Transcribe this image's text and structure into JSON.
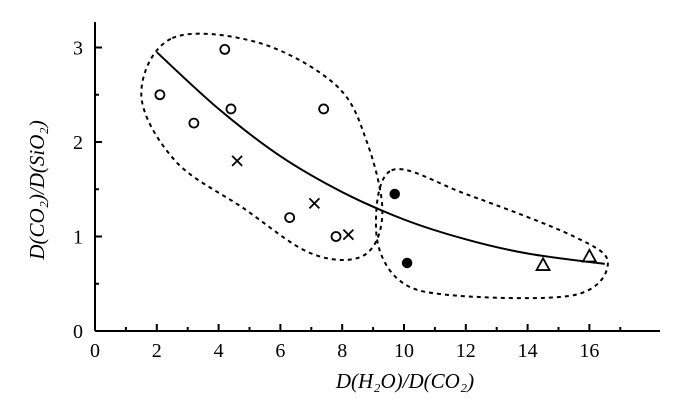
{
  "chart_data": {
    "type": "scatter",
    "xlabel": "D(H₂O)/D(CO₂)",
    "ylabel": "D(CO₂)/D(SiO₂)",
    "xlim": [
      0,
      18
    ],
    "ylim": [
      0,
      3.3
    ],
    "x_ticks": [
      "0",
      "2",
      "4",
      "6",
      "8",
      "10",
      "12",
      "14",
      "16"
    ],
    "y_ticks": [
      "0",
      "1",
      "2",
      "3"
    ],
    "grid": false,
    "legend": "none",
    "series": [
      {
        "marker": "open-circle",
        "points": [
          [
            2.1,
            2.5
          ],
          [
            3.2,
            2.2
          ],
          [
            4.2,
            2.98
          ],
          [
            4.4,
            2.35
          ],
          [
            7.4,
            2.35
          ],
          [
            6.3,
            1.2
          ],
          [
            7.8,
            1.0
          ]
        ]
      },
      {
        "marker": "cross",
        "points": [
          [
            4.6,
            1.8
          ],
          [
            7.1,
            1.35
          ],
          [
            8.2,
            1.02
          ]
        ]
      },
      {
        "marker": "filled-circle",
        "points": [
          [
            9.7,
            1.45
          ],
          [
            10.1,
            0.72
          ]
        ]
      },
      {
        "marker": "open-triangle",
        "points": [
          [
            14.5,
            0.7
          ],
          [
            16.0,
            0.79
          ]
        ]
      }
    ],
    "trend_curve": {
      "style": "solid",
      "points": [
        [
          2.0,
          2.95
        ],
        [
          4.0,
          2.35
        ],
        [
          6.0,
          1.85
        ],
        [
          8.0,
          1.47
        ],
        [
          10.0,
          1.18
        ],
        [
          12.0,
          0.97
        ],
        [
          14.0,
          0.82
        ],
        [
          16.5,
          0.71
        ]
      ]
    },
    "group_outlines": [
      {
        "style": "dotted",
        "points": [
          [
            2.5,
            3.1
          ],
          [
            5.3,
            3.05
          ],
          [
            7.8,
            2.6
          ],
          [
            8.8,
            2.0
          ],
          [
            9.3,
            1.25
          ],
          [
            8.7,
            0.8
          ],
          [
            7.0,
            0.82
          ],
          [
            4.8,
            1.3
          ],
          [
            2.6,
            1.8
          ],
          [
            1.5,
            2.5
          ]
        ]
      },
      {
        "style": "dotted",
        "points": [
          [
            9.6,
            1.7
          ],
          [
            12.0,
            1.45
          ],
          [
            15.5,
            1.0
          ],
          [
            16.6,
            0.72
          ],
          [
            15.5,
            0.38
          ],
          [
            11.5,
            0.38
          ],
          [
            9.8,
            0.55
          ],
          [
            9.1,
            1.05
          ]
        ]
      }
    ]
  }
}
